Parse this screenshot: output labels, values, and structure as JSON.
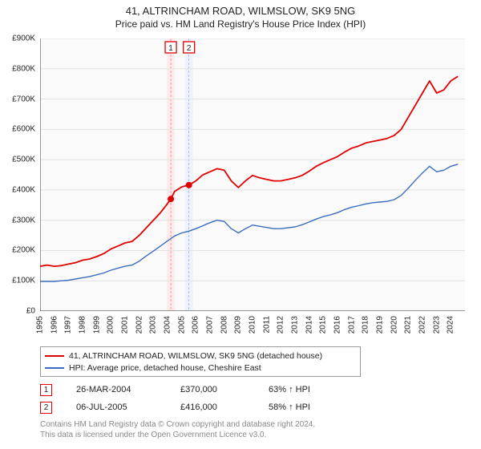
{
  "title_line1": "41, ALTRINCHAM ROAD, WILMSLOW, SK9 5NG",
  "title_line2": "Price paid vs. HM Land Registry's House Price Index (HPI)",
  "chart": {
    "type": "line",
    "background_color": "#fafafa",
    "grid_color": "#e2e2e2",
    "axis_color": "#333333",
    "y": {
      "min": 0,
      "max": 900000,
      "tick_step": 100000,
      "labels": [
        "£0",
        "£100K",
        "£200K",
        "£300K",
        "£400K",
        "£500K",
        "£600K",
        "£700K",
        "£800K",
        "£900K"
      ]
    },
    "x": {
      "min": 1995,
      "max": 2025,
      "tick_step": 1,
      "labels": [
        "1995",
        "1996",
        "1997",
        "1998",
        "1999",
        "2000",
        "2001",
        "2002",
        "2003",
        "2004",
        "2005",
        "2006",
        "2007",
        "2008",
        "2009",
        "2010",
        "2011",
        "2012",
        "2013",
        "2014",
        "2015",
        "2016",
        "2017",
        "2018",
        "2019",
        "2020",
        "2021",
        "2022",
        "2023",
        "2024"
      ]
    },
    "series": [
      {
        "name": "property",
        "label": "41, ALTRINCHAM ROAD, WILMSLOW, SK9 5NG (detached house)",
        "color": "#e00000",
        "line_width": 1.8,
        "data": [
          [
            1995,
            148000
          ],
          [
            1995.5,
            152000
          ],
          [
            1996,
            148000
          ],
          [
            1996.5,
            150000
          ],
          [
            1997,
            155000
          ],
          [
            1997.5,
            160000
          ],
          [
            1998,
            168000
          ],
          [
            1998.5,
            172000
          ],
          [
            1999,
            180000
          ],
          [
            1999.5,
            190000
          ],
          [
            2000,
            205000
          ],
          [
            2000.5,
            215000
          ],
          [
            2001,
            225000
          ],
          [
            2001.5,
            230000
          ],
          [
            2002,
            250000
          ],
          [
            2002.5,
            275000
          ],
          [
            2003,
            300000
          ],
          [
            2003.5,
            325000
          ],
          [
            2004,
            355000
          ],
          [
            2004.23,
            370000
          ],
          [
            2004.5,
            395000
          ],
          [
            2005,
            410000
          ],
          [
            2005.5,
            416000
          ],
          [
            2006,
            430000
          ],
          [
            2006.5,
            450000
          ],
          [
            2007,
            460000
          ],
          [
            2007.5,
            470000
          ],
          [
            2008,
            465000
          ],
          [
            2008.5,
            430000
          ],
          [
            2009,
            408000
          ],
          [
            2009.5,
            430000
          ],
          [
            2010,
            448000
          ],
          [
            2010.5,
            440000
          ],
          [
            2011,
            435000
          ],
          [
            2011.5,
            430000
          ],
          [
            2012,
            430000
          ],
          [
            2012.5,
            435000
          ],
          [
            2013,
            440000
          ],
          [
            2013.5,
            448000
          ],
          [
            2014,
            462000
          ],
          [
            2014.5,
            478000
          ],
          [
            2015,
            490000
          ],
          [
            2015.5,
            500000
          ],
          [
            2016,
            510000
          ],
          [
            2016.5,
            525000
          ],
          [
            2017,
            538000
          ],
          [
            2017.5,
            545000
          ],
          [
            2018,
            555000
          ],
          [
            2018.5,
            560000
          ],
          [
            2019,
            565000
          ],
          [
            2019.5,
            570000
          ],
          [
            2020,
            580000
          ],
          [
            2020.5,
            600000
          ],
          [
            2021,
            640000
          ],
          [
            2021.5,
            680000
          ],
          [
            2022,
            720000
          ],
          [
            2022.5,
            760000
          ],
          [
            2023,
            720000
          ],
          [
            2023.5,
            730000
          ],
          [
            2024,
            760000
          ],
          [
            2024.5,
            775000
          ]
        ]
      },
      {
        "name": "hpi",
        "label": "HPI: Average price, detached house, Cheshire East",
        "color": "#3a6dc0",
        "line_width": 1.4,
        "data": [
          [
            1995,
            98000
          ],
          [
            1995.5,
            98000
          ],
          [
            1996,
            98000
          ],
          [
            1996.5,
            100000
          ],
          [
            1997,
            102000
          ],
          [
            1997.5,
            106000
          ],
          [
            1998,
            110000
          ],
          [
            1998.5,
            114000
          ],
          [
            1999,
            120000
          ],
          [
            1999.5,
            126000
          ],
          [
            2000,
            135000
          ],
          [
            2000.5,
            142000
          ],
          [
            2001,
            148000
          ],
          [
            2001.5,
            152000
          ],
          [
            2002,
            165000
          ],
          [
            2002.5,
            182000
          ],
          [
            2003,
            198000
          ],
          [
            2003.5,
            215000
          ],
          [
            2004,
            232000
          ],
          [
            2004.5,
            248000
          ],
          [
            2005,
            258000
          ],
          [
            2005.5,
            264000
          ],
          [
            2006,
            272000
          ],
          [
            2006.5,
            282000
          ],
          [
            2007,
            292000
          ],
          [
            2007.5,
            300000
          ],
          [
            2008,
            296000
          ],
          [
            2008.5,
            272000
          ],
          [
            2009,
            258000
          ],
          [
            2009.5,
            272000
          ],
          [
            2010,
            284000
          ],
          [
            2010.5,
            280000
          ],
          [
            2011,
            276000
          ],
          [
            2011.5,
            272000
          ],
          [
            2012,
            272000
          ],
          [
            2012.5,
            275000
          ],
          [
            2013,
            278000
          ],
          [
            2013.5,
            285000
          ],
          [
            2014,
            294000
          ],
          [
            2014.5,
            304000
          ],
          [
            2015,
            312000
          ],
          [
            2015.5,
            318000
          ],
          [
            2016,
            325000
          ],
          [
            2016.5,
            335000
          ],
          [
            2017,
            343000
          ],
          [
            2017.5,
            348000
          ],
          [
            2018,
            354000
          ],
          [
            2018.5,
            358000
          ],
          [
            2019,
            360000
          ],
          [
            2019.5,
            362000
          ],
          [
            2020,
            368000
          ],
          [
            2020.5,
            382000
          ],
          [
            2021,
            406000
          ],
          [
            2021.5,
            432000
          ],
          [
            2022,
            456000
          ],
          [
            2022.5,
            478000
          ],
          [
            2023,
            460000
          ],
          [
            2023.5,
            465000
          ],
          [
            2024,
            478000
          ],
          [
            2024.5,
            485000
          ]
        ]
      }
    ],
    "vbands": [
      {
        "x": 2004.23,
        "color": "#ffe6e6",
        "border": "#e00000"
      },
      {
        "x": 2005.51,
        "color": "#e6eeff",
        "border": "#3a6dc0"
      }
    ],
    "marker_labels": [
      {
        "num": "1",
        "x": 2004.23,
        "color": "#e00000"
      },
      {
        "num": "2",
        "x": 2005.51,
        "color": "#e00000"
      }
    ],
    "sale_points": [
      {
        "x": 2004.23,
        "y": 370000,
        "color": "#e00000"
      },
      {
        "x": 2005.51,
        "y": 416000,
        "color": "#e00000"
      }
    ]
  },
  "legend": {
    "items": [
      {
        "color": "#e00000",
        "label": "41, ALTRINCHAM ROAD, WILMSLOW, SK9 5NG (detached house)"
      },
      {
        "color": "#3a6dc0",
        "label": "HPI: Average price, detached house, Cheshire East"
      }
    ]
  },
  "sales": [
    {
      "num": "1",
      "color": "#e00000",
      "date": "26-MAR-2004",
      "price": "£370,000",
      "hpi": "63% ↑ HPI"
    },
    {
      "num": "2",
      "color": "#e00000",
      "date": "06-JUL-2005",
      "price": "£416,000",
      "hpi": "58% ↑ HPI"
    }
  ],
  "footer_line1": "Contains HM Land Registry data © Crown copyright and database right 2024.",
  "footer_line2": "This data is licensed under the Open Government Licence v3.0."
}
